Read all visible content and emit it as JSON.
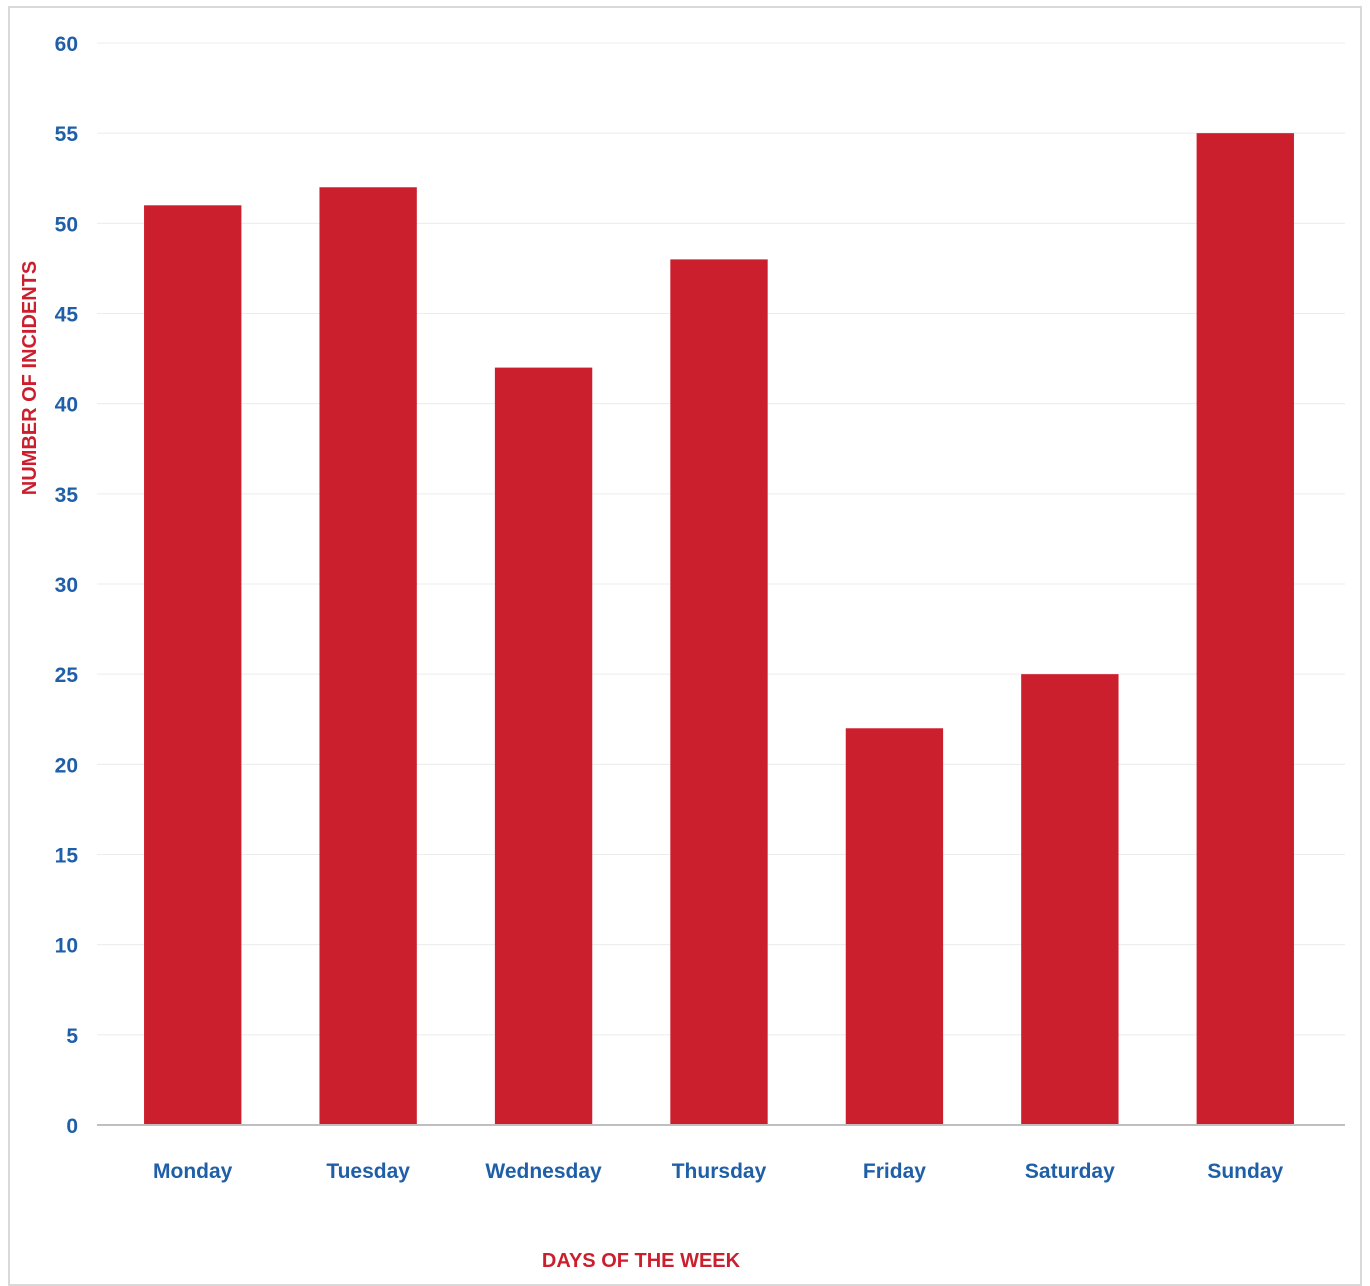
{
  "chart_data": {
    "type": "bar",
    "title": "",
    "xlabel": "DAYS OF THE WEEK",
    "ylabel": "NUMBER OF INCIDENTS",
    "categories": [
      "Monday",
      "Tuesday",
      "Wednesday",
      "Thursday",
      "Friday",
      "Saturday",
      "Sunday"
    ],
    "values": [
      51,
      52,
      42,
      48,
      22,
      25,
      55
    ],
    "ylim": [
      0,
      60
    ],
    "yticks": [
      0,
      5,
      10,
      15,
      20,
      25,
      30,
      35,
      40,
      45,
      50,
      55,
      60
    ],
    "grid": true,
    "legend": "none",
    "bar_color": "#cc1f2e",
    "tick_color": "#1f5fa8",
    "axis_title_color": "#cc1f2e"
  }
}
